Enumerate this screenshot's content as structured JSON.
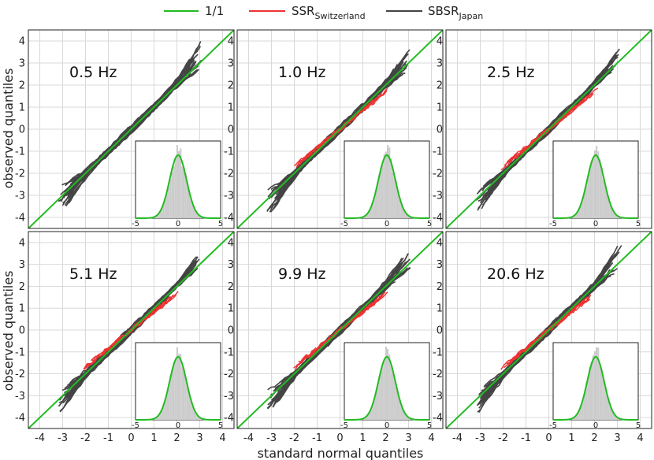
{
  "legend": {
    "ref_label": "1/1",
    "ssr_label": "SSR",
    "ssr_sub": "Switzerland",
    "sbsr_label": "SBSR",
    "sbsr_sub": "Japan"
  },
  "colors": {
    "ref": "#22bb22",
    "ssr": "#ee3333",
    "sbsr": "#444444",
    "grid": "#d9d9d9",
    "hist": "#cccccc"
  },
  "chart_data": {
    "type": "scatter",
    "xlabel": "standard normal quantiles",
    "ylabel": "observed quantiles",
    "xlim": [
      -4.5,
      4.5
    ],
    "ylim": [
      -4.5,
      4.5
    ],
    "x_ticks": [
      "-4",
      "-3",
      "-2",
      "-1",
      "0",
      "1",
      "2",
      "3",
      "4"
    ],
    "y_ticks": [
      "-4",
      "-3",
      "-2",
      "-1",
      "0",
      "1",
      "2",
      "3",
      "4"
    ],
    "inset": {
      "x_ticks": [
        "-5",
        "0",
        "5"
      ],
      "xlim": [
        -5,
        5
      ],
      "description_curve": "standard normal pdf",
      "hist_color": "#cccccc"
    },
    "reference_line": {
      "x": [
        -4.5,
        4.5
      ],
      "y": [
        -4.5,
        4.5
      ]
    },
    "panels": [
      {
        "frequency": "0.5 Hz",
        "show_ssr": false,
        "lower_spread": 1.0,
        "upper_spread": 1.0
      },
      {
        "frequency": "1.0 Hz",
        "show_ssr": true,
        "lower_spread": 0.9,
        "upper_spread": 0.9
      },
      {
        "frequency": "2.5 Hz",
        "show_ssr": true,
        "lower_spread": 0.8,
        "upper_spread": 0.6
      },
      {
        "frequency": "5.1 Hz",
        "show_ssr": true,
        "lower_spread": 0.7,
        "upper_spread": 0.7
      },
      {
        "frequency": "9.9 Hz",
        "show_ssr": true,
        "lower_spread": 0.8,
        "upper_spread": 0.8
      },
      {
        "frequency": "20.6 Hz",
        "show_ssr": true,
        "lower_spread": 0.8,
        "upper_spread": 0.9
      }
    ]
  }
}
